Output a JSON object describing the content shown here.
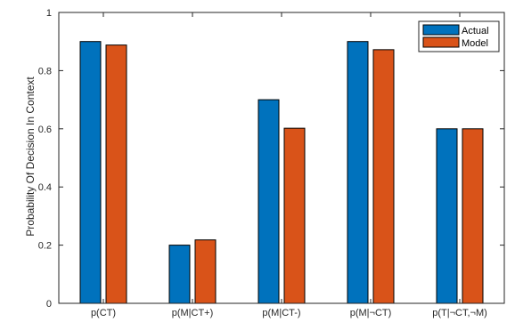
{
  "chart_data": {
    "type": "bar",
    "title": "",
    "xlabel": "",
    "ylabel": "Probability Of Decision In Context",
    "categories": [
      "p(CT)",
      "p(M|CT+)",
      "p(M|CT-)",
      "p(M|¬CT)",
      "p(T|¬CT,¬M)"
    ],
    "series": [
      {
        "name": "Actual",
        "color": "#0072BD",
        "values": [
          0.9,
          0.2,
          0.7,
          0.9,
          0.6
        ]
      },
      {
        "name": "Model",
        "color": "#D95319",
        "values": [
          0.888,
          0.218,
          0.602,
          0.872,
          0.6
        ]
      }
    ],
    "ylim": [
      0,
      1
    ],
    "yticks": [
      "0",
      "0.2",
      "0.4",
      "0.6",
      "0.8",
      "1"
    ],
    "grid": false,
    "legend_position": "top-right"
  }
}
